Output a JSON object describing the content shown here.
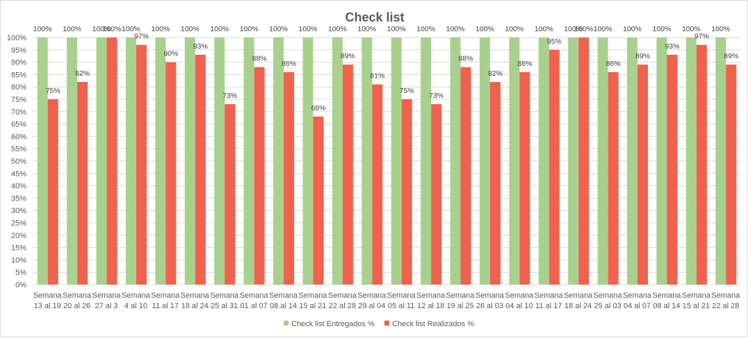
{
  "chart_data": {
    "type": "bar",
    "title": "Check list",
    "categories": [
      [
        "Semana",
        "13 al 19"
      ],
      [
        "Semana",
        "20 al 26"
      ],
      [
        "Semana",
        "27 al 3"
      ],
      [
        "Semana",
        "4 al 10"
      ],
      [
        "Semana",
        "11 al 17"
      ],
      [
        "Semana",
        "18 al 24"
      ],
      [
        "Semana",
        "25 al 31"
      ],
      [
        "Semana",
        "01 al 07"
      ],
      [
        "Semana",
        "08 al 14"
      ],
      [
        "Semana",
        "15 al 21"
      ],
      [
        "Semana",
        "22 al 28"
      ],
      [
        "Semana",
        "29 al 04"
      ],
      [
        "Semana",
        "05 al 11"
      ],
      [
        "Semana",
        "12 al 18"
      ],
      [
        "Semana",
        "19 al 25"
      ],
      [
        "Semana",
        "26 al 03"
      ],
      [
        "Semana",
        "04 al 10"
      ],
      [
        "Semana",
        "11 al 17"
      ],
      [
        "Semana",
        "18 al 24"
      ],
      [
        "Semana",
        "25 al 03"
      ],
      [
        "Semana",
        "04 al 07"
      ],
      [
        "Semana",
        "08 al 14"
      ],
      [
        "Semana",
        "15 al 21"
      ],
      [
        "Semana",
        "22 al 28"
      ]
    ],
    "series": [
      {
        "name": "Check list Entregados %",
        "color": "#a9d18e",
        "values": [
          100,
          100,
          100,
          100,
          100,
          100,
          100,
          100,
          100,
          100,
          100,
          100,
          100,
          100,
          100,
          100,
          100,
          100,
          100,
          100,
          100,
          100,
          100,
          100
        ]
      },
      {
        "name": "Check list Realizados %",
        "color": "#f0624d",
        "values": [
          75,
          82,
          100,
          97,
          90,
          93,
          73,
          88,
          86,
          68,
          89,
          81,
          75,
          73,
          88,
          82,
          86,
          95,
          100,
          86,
          89,
          93,
          97,
          89
        ]
      }
    ],
    "ylim": [
      0,
      100
    ],
    "ytick_step": 5,
    "ytick_format": "percent",
    "grid": true,
    "gridline_color": "#d9d9d9",
    "label_color": "#595959",
    "legend_position": "bottom"
  }
}
